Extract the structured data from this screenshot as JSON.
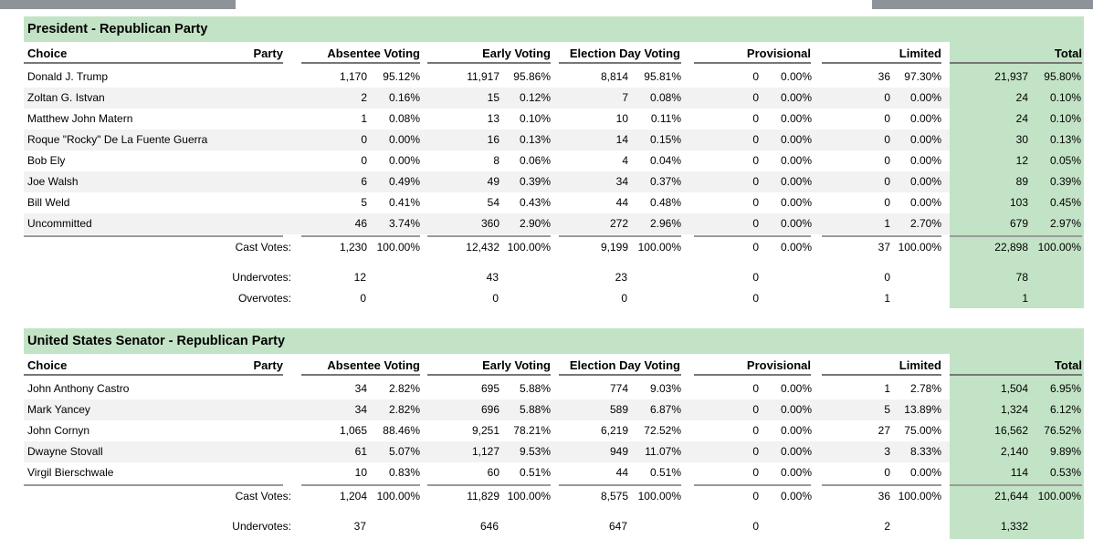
{
  "races": [
    {
      "title": "President - Republican Party",
      "headers": {
        "choice": "Choice",
        "party": "Party",
        "absentee": "Absentee Voting",
        "early": "Early Voting",
        "election_day": "Election Day Voting",
        "provisional": "Provisional",
        "limited": "Limited",
        "total": "Total"
      },
      "rows": [
        {
          "choice": "Donald J. Trump",
          "abs_v": "1,170",
          "abs_p": "95.12%",
          "ear_v": "11,917",
          "ear_p": "95.86%",
          "ed_v": "8,814",
          "ed_p": "95.81%",
          "pro_v": "0",
          "pro_p": "0.00%",
          "lim_v": "36",
          "lim_p": "97.30%",
          "tot_v": "21,937",
          "tot_p": "95.80%"
        },
        {
          "choice": "Zoltan G. Istvan",
          "abs_v": "2",
          "abs_p": "0.16%",
          "ear_v": "15",
          "ear_p": "0.12%",
          "ed_v": "7",
          "ed_p": "0.08%",
          "pro_v": "0",
          "pro_p": "0.00%",
          "lim_v": "0",
          "lim_p": "0.00%",
          "tot_v": "24",
          "tot_p": "0.10%"
        },
        {
          "choice": "Matthew John Matern",
          "abs_v": "1",
          "abs_p": "0.08%",
          "ear_v": "13",
          "ear_p": "0.10%",
          "ed_v": "10",
          "ed_p": "0.11%",
          "pro_v": "0",
          "pro_p": "0.00%",
          "lim_v": "0",
          "lim_p": "0.00%",
          "tot_v": "24",
          "tot_p": "0.10%"
        },
        {
          "choice": "Roque \"Rocky\" De La Fuente Guerra",
          "abs_v": "0",
          "abs_p": "0.00%",
          "ear_v": "16",
          "ear_p": "0.13%",
          "ed_v": "14",
          "ed_p": "0.15%",
          "pro_v": "0",
          "pro_p": "0.00%",
          "lim_v": "0",
          "lim_p": "0.00%",
          "tot_v": "30",
          "tot_p": "0.13%"
        },
        {
          "choice": "Bob Ely",
          "abs_v": "0",
          "abs_p": "0.00%",
          "ear_v": "8",
          "ear_p": "0.06%",
          "ed_v": "4",
          "ed_p": "0.04%",
          "pro_v": "0",
          "pro_p": "0.00%",
          "lim_v": "0",
          "lim_p": "0.00%",
          "tot_v": "12",
          "tot_p": "0.05%"
        },
        {
          "choice": "Joe Walsh",
          "abs_v": "6",
          "abs_p": "0.49%",
          "ear_v": "49",
          "ear_p": "0.39%",
          "ed_v": "34",
          "ed_p": "0.37%",
          "pro_v": "0",
          "pro_p": "0.00%",
          "lim_v": "0",
          "lim_p": "0.00%",
          "tot_v": "89",
          "tot_p": "0.39%"
        },
        {
          "choice": "Bill Weld",
          "abs_v": "5",
          "abs_p": "0.41%",
          "ear_v": "54",
          "ear_p": "0.43%",
          "ed_v": "44",
          "ed_p": "0.48%",
          "pro_v": "0",
          "pro_p": "0.00%",
          "lim_v": "0",
          "lim_p": "0.00%",
          "tot_v": "103",
          "tot_p": "0.45%"
        },
        {
          "choice": "Uncommitted",
          "abs_v": "46",
          "abs_p": "3.74%",
          "ear_v": "360",
          "ear_p": "2.90%",
          "ed_v": "272",
          "ed_p": "2.96%",
          "pro_v": "0",
          "pro_p": "0.00%",
          "lim_v": "1",
          "lim_p": "2.70%",
          "tot_v": "679",
          "tot_p": "2.97%"
        }
      ],
      "summary": [
        {
          "label": "Cast Votes:",
          "abs_v": "1,230",
          "abs_p": "100.00%",
          "ear_v": "12,432",
          "ear_p": "100.00%",
          "ed_v": "9,199",
          "ed_p": "100.00%",
          "pro_v": "0",
          "pro_p": "0.00%",
          "lim_v": "37",
          "lim_p": "100.00%",
          "tot_v": "22,898",
          "tot_p": "100.00%"
        },
        {
          "label": "Undervotes:",
          "abs_v": "12",
          "ear_v": "43",
          "ed_v": "23",
          "pro_v": "0",
          "lim_v": "0",
          "tot_v": "78"
        },
        {
          "label": "Overvotes:",
          "abs_v": "0",
          "ear_v": "0",
          "ed_v": "0",
          "pro_v": "0",
          "lim_v": "1",
          "tot_v": "1"
        }
      ]
    },
    {
      "title": "United States Senator - Republican Party",
      "headers": {
        "choice": "Choice",
        "party": "Party",
        "absentee": "Absentee Voting",
        "early": "Early Voting",
        "election_day": "Election Day Voting",
        "provisional": "Provisional",
        "limited": "Limited",
        "total": "Total"
      },
      "rows": [
        {
          "choice": "John Anthony Castro",
          "abs_v": "34",
          "abs_p": "2.82%",
          "ear_v": "695",
          "ear_p": "5.88%",
          "ed_v": "774",
          "ed_p": "9.03%",
          "pro_v": "0",
          "pro_p": "0.00%",
          "lim_v": "1",
          "lim_p": "2.78%",
          "tot_v": "1,504",
          "tot_p": "6.95%"
        },
        {
          "choice": "Mark Yancey",
          "abs_v": "34",
          "abs_p": "2.82%",
          "ear_v": "696",
          "ear_p": "5.88%",
          "ed_v": "589",
          "ed_p": "6.87%",
          "pro_v": "0",
          "pro_p": "0.00%",
          "lim_v": "5",
          "lim_p": "13.89%",
          "tot_v": "1,324",
          "tot_p": "6.12%"
        },
        {
          "choice": "John Cornyn",
          "abs_v": "1,065",
          "abs_p": "88.46%",
          "ear_v": "9,251",
          "ear_p": "78.21%",
          "ed_v": "6,219",
          "ed_p": "72.52%",
          "pro_v": "0",
          "pro_p": "0.00%",
          "lim_v": "27",
          "lim_p": "75.00%",
          "tot_v": "16,562",
          "tot_p": "76.52%"
        },
        {
          "choice": "Dwayne Stovall",
          "abs_v": "61",
          "abs_p": "5.07%",
          "ear_v": "1,127",
          "ear_p": "9.53%",
          "ed_v": "949",
          "ed_p": "11.07%",
          "pro_v": "0",
          "pro_p": "0.00%",
          "lim_v": "3",
          "lim_p": "8.33%",
          "tot_v": "2,140",
          "tot_p": "9.89%"
        },
        {
          "choice": "Virgil Bierschwale",
          "abs_v": "10",
          "abs_p": "0.83%",
          "ear_v": "60",
          "ear_p": "0.51%",
          "ed_v": "44",
          "ed_p": "0.51%",
          "pro_v": "0",
          "pro_p": "0.00%",
          "lim_v": "0",
          "lim_p": "0.00%",
          "tot_v": "114",
          "tot_p": "0.53%"
        }
      ],
      "summary": [
        {
          "label": "Cast Votes:",
          "abs_v": "1,204",
          "abs_p": "100.00%",
          "ear_v": "11,829",
          "ear_p": "100.00%",
          "ed_v": "8,575",
          "ed_p": "100.00%",
          "pro_v": "0",
          "pro_p": "0.00%",
          "lim_v": "36",
          "lim_p": "100.00%",
          "tot_v": "21,644",
          "tot_p": "100.00%"
        },
        {
          "label": "Undervotes:",
          "abs_v": "37",
          "ear_v": "646",
          "ed_v": "647",
          "pro_v": "0",
          "lim_v": "2",
          "tot_v": "1,332"
        }
      ]
    }
  ],
  "colors": {
    "header_band": "#c3e3c6",
    "top_bar": "#8e9399",
    "alt_row": "#f2f2f2"
  }
}
